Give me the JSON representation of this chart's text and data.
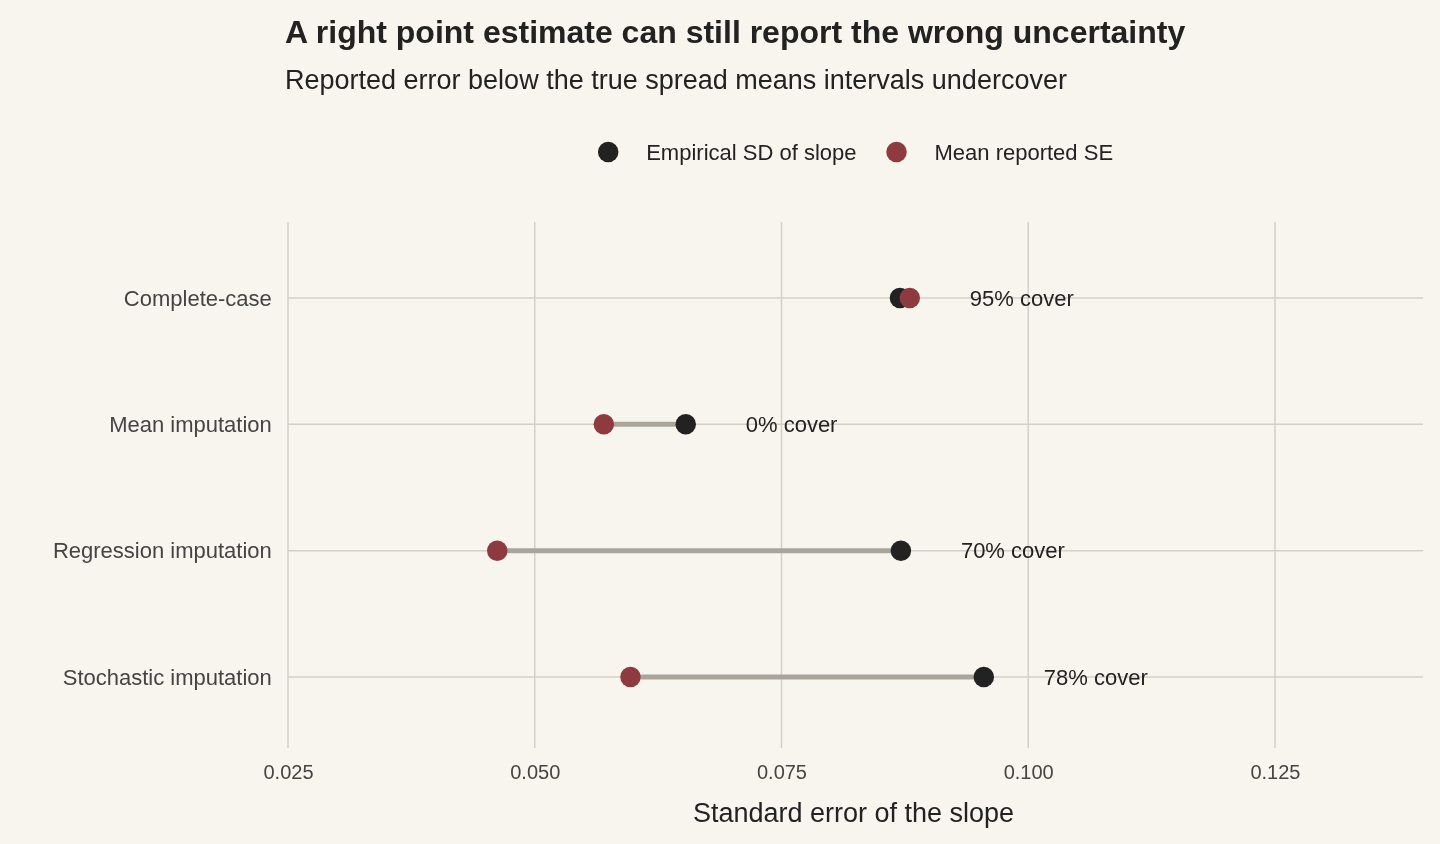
{
  "chart_data": {
    "type": "scatter",
    "orientation": "horizontal",
    "title": "A right point estimate can still report the wrong uncertainty",
    "subtitle": "Reported error below the true spread means intervals undercover",
    "xlabel": "Standard error of the slope",
    "categories": [
      "Complete-case",
      "Mean imputation",
      "Regression imputation",
      "Stochastic imputation"
    ],
    "series": [
      {
        "name": "Empirical SD of slope",
        "color": "#222222",
        "values": [
          0.087,
          0.0653,
          0.0871,
          0.0955
        ]
      },
      {
        "name": "Mean reported SE",
        "color": "#8e3a3f",
        "values": [
          0.088,
          0.057,
          0.0462,
          0.0597
        ]
      }
    ],
    "xlim": [
      0.025,
      0.14
    ],
    "xticks": [
      {
        "value": 0.025,
        "label": "0.025"
      },
      {
        "value": 0.05,
        "label": "0.050"
      },
      {
        "value": 0.075,
        "label": "0.075"
      },
      {
        "value": 0.1,
        "label": "0.100"
      },
      {
        "value": 0.125,
        "label": "0.125"
      }
    ],
    "annotations": [
      "95% cover",
      "0% cover",
      "70% cover",
      "78% cover"
    ],
    "grid": true,
    "legend": "top",
    "marker": "circle"
  }
}
